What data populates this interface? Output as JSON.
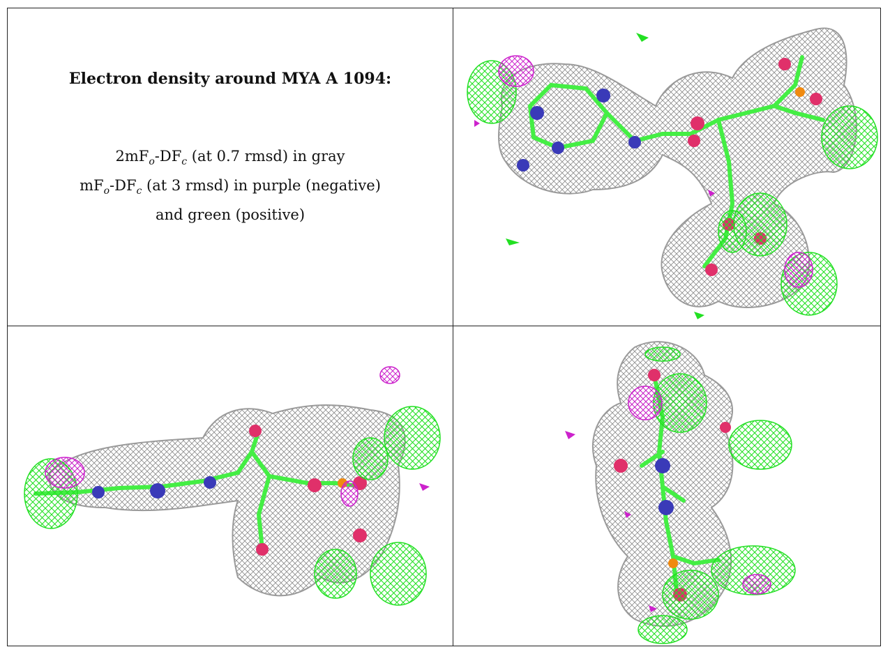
{
  "caption": {
    "title": "Electron density around MYA A 1094:",
    "line1": {
      "pre": "2mF",
      "s1": "o",
      "mid": "-DF",
      "s2": "c",
      "post": " (at 0.7 rmsd) in gray"
    },
    "line2": {
      "pre": "mF",
      "s1": "o",
      "mid": "-DF",
      "s2": "c",
      "post": " (at 3 rmsd) in purple (negative)"
    },
    "line3": "and green (positive)"
  },
  "colors": {
    "mesh_2fofc": "#8a8a8a",
    "mesh_positive": "#22e022",
    "mesh_negative": "#cc22cc",
    "carbon": "#44ee44",
    "nitrogen": "#3a3ab8",
    "oxygen": "#e0306a",
    "phosphorus": "#f08a10",
    "border": "#222222"
  }
}
